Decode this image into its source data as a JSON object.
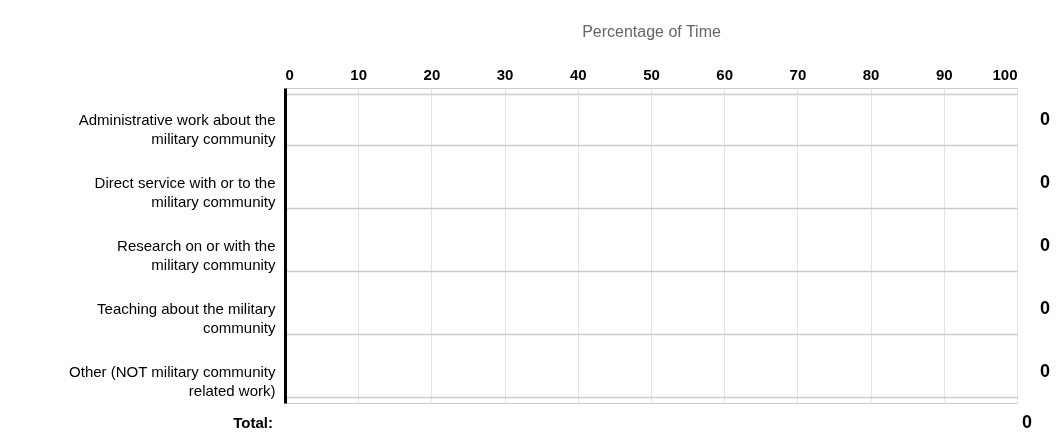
{
  "chart_data": {
    "type": "bar",
    "orientation": "horizontal",
    "xlabel": "Percentage of Time",
    "categories": [
      "Administrative work about the military community",
      "Direct service with or to the military community",
      "Research on or with the military community",
      "Teaching about the military community",
      "Other (NOT military community related work)"
    ],
    "values": [
      0,
      0,
      0,
      0,
      0
    ],
    "xlim": [
      0,
      100
    ],
    "xticks": [
      0,
      10,
      20,
      30,
      40,
      50,
      60,
      70,
      80,
      90,
      100
    ],
    "grid": true,
    "data_labels": true,
    "annotations": [
      "Total:",
      "0"
    ]
  }
}
